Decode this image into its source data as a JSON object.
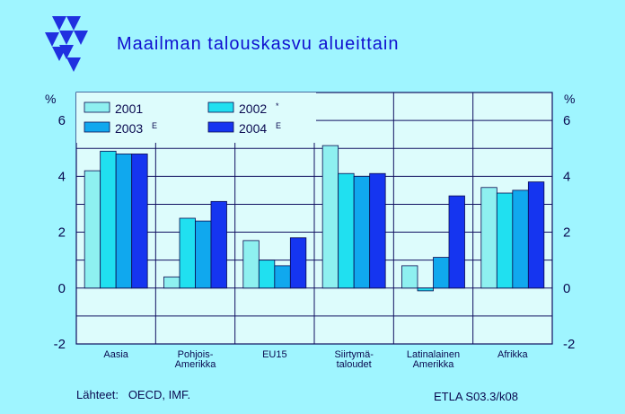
{
  "chart_data": {
    "type": "bar",
    "title": "Maailman talouskasvu alueittain",
    "unit_left": "%",
    "unit_right": "%",
    "ylim": [
      -2,
      7
    ],
    "yticks": [
      -2,
      0,
      2,
      4,
      6
    ],
    "ytick_labels": [
      "-2",
      "0",
      "2",
      "4",
      "6"
    ],
    "grid": true,
    "legend_position": "top-left",
    "categories": [
      [
        "Aasia"
      ],
      [
        "Pohjois-",
        "Amerikka"
      ],
      [
        "EU15"
      ],
      [
        "Siirtymä-",
        "taloudet"
      ],
      [
        "Latinalainen",
        "Amerikka"
      ],
      [
        "Afrikka"
      ]
    ],
    "series": [
      {
        "name": "2001",
        "name_sup": "",
        "color": "#8ef0f0",
        "values": [
          4.2,
          0.4,
          1.7,
          5.1,
          0.8,
          3.6
        ]
      },
      {
        "name": "2002",
        "name_sup": "*",
        "color": "#20e0f0",
        "values": [
          4.9,
          2.5,
          1.0,
          4.1,
          -0.1,
          3.4
        ]
      },
      {
        "name": "2003",
        "name_sup": "E",
        "color": "#10a8ee",
        "values": [
          4.8,
          2.4,
          0.8,
          4.0,
          1.1,
          3.5
        ]
      },
      {
        "name": "2004",
        "name_sup": "E",
        "color": "#1535f0",
        "values": [
          4.8,
          3.1,
          1.8,
          4.1,
          3.3,
          3.8
        ]
      }
    ]
  },
  "colors": {
    "background": "#9ff5ff",
    "plot_background": "#ddfcfc",
    "logo": "#2030e0"
  },
  "footer": {
    "source": "Lähteet:   OECD, IMF.",
    "code": "ETLA S03.3/k08"
  },
  "logo_icon": "etla-triangles-logo"
}
